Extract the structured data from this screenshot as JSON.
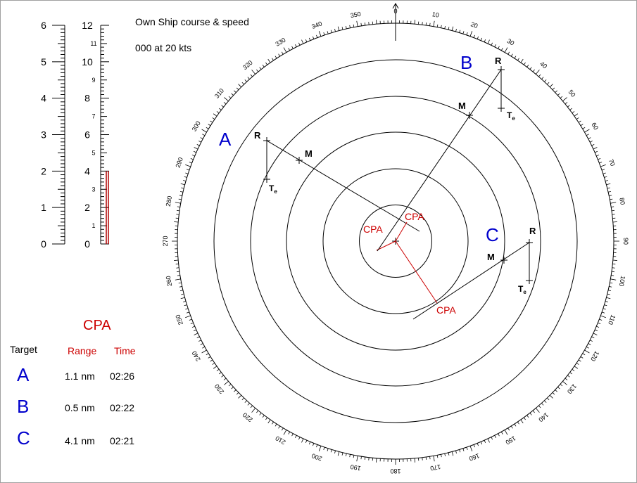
{
  "own_ship": {
    "heading_label": "Own  Ship course & speed",
    "value": "000 at 20 kts"
  },
  "scales": {
    "left_labels": [
      "0",
      "1",
      "2",
      "3",
      "4",
      "5",
      "6"
    ],
    "right_major": [
      "0",
      "2",
      "4",
      "6",
      "8",
      "10",
      "12"
    ],
    "right_minor": [
      "1",
      "3",
      "5",
      "7",
      "9",
      "11"
    ],
    "right_fill_value": 4,
    "fill_color": "#b00000"
  },
  "radar": {
    "bearings": [
      "0",
      "10",
      "20",
      "30",
      "40",
      "50",
      "60",
      "70",
      "80",
      "90",
      "100",
      "110",
      "120",
      "130",
      "140",
      "150",
      "160",
      "170",
      "180",
      "190",
      "200",
      "210",
      "220",
      "230",
      "240",
      "250",
      "260",
      "270",
      "280",
      "290",
      "300",
      "310",
      "320",
      "330",
      "340",
      "350"
    ],
    "range_rings": 5,
    "targets": [
      {
        "name": "A",
        "R": "R",
        "M": "M",
        "Te": "T",
        "Te_sub": "e",
        "cpa": "CPA"
      },
      {
        "name": "B",
        "R": "R",
        "M": "M",
        "Te": "T",
        "Te_sub": "e",
        "cpa": "CPA"
      },
      {
        "name": "C",
        "R": "R",
        "M": "M",
        "Te": "T",
        "Te_sub": "e",
        "cpa": "CPA"
      }
    ],
    "target_color": "#0000cc",
    "cpa_color": "#cc0000"
  },
  "cpa_table": {
    "title": "CPA",
    "col_target": "Target",
    "col_range": "Range",
    "col_time": "Time",
    "rows": [
      {
        "target": "A",
        "range": "1.1 nm",
        "time": "02:26"
      },
      {
        "target": "B",
        "range": "0.5 nm",
        "time": "02:22"
      },
      {
        "target": "C",
        "range": "4.1 nm",
        "time": "02:21"
      }
    ]
  }
}
